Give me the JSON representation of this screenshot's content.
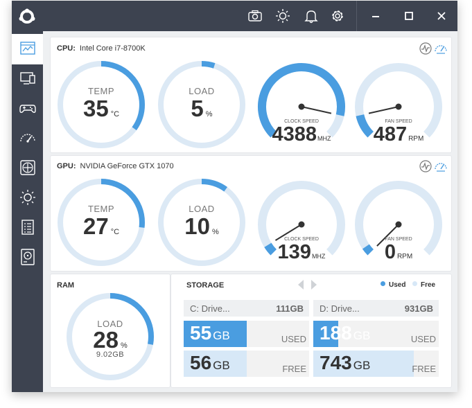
{
  "window": {
    "toolbar": {
      "icons": [
        "app-logo-icon",
        "camera-icon",
        "brightness-icon",
        "bell-icon",
        "gear-icon",
        "minimize-icon",
        "maximize-icon",
        "close-icon"
      ]
    }
  },
  "colors": {
    "accent": "#4a9de0",
    "track": "#dce9f5",
    "chrome": "#3d4350",
    "light": "#d7e8f7"
  },
  "sidebar": {
    "items": [
      {
        "icon": "dashboard-icon",
        "active": true
      },
      {
        "icon": "monitor-icon"
      },
      {
        "icon": "gamepad-icon"
      },
      {
        "icon": "speedometer-icon"
      },
      {
        "icon": "fan-icon"
      },
      {
        "icon": "sun-icon"
      },
      {
        "icon": "checklist-icon"
      },
      {
        "icon": "harddrive-icon"
      }
    ]
  },
  "cpu": {
    "label": "CPU:",
    "name": "Intel Core i7-8700K",
    "temp": {
      "caption": "TEMP",
      "value": "35",
      "unit": "°C",
      "fraction": 0.35
    },
    "load": {
      "caption": "LOAD",
      "value": "5",
      "unit": "%",
      "fraction": 0.05
    },
    "clock": {
      "caption": "CLOCK SPEED",
      "value": "4388",
      "unit": "MHZ",
      "fraction": 0.88
    },
    "fan": {
      "caption": "FAN SPEED",
      "value": "487",
      "unit": "RPM",
      "fraction": 0.12
    }
  },
  "gpu": {
    "label": "GPU:",
    "name": "NVIDIA GeForce GTX 1070",
    "temp": {
      "caption": "TEMP",
      "value": "27",
      "unit": "°C",
      "fraction": 0.27
    },
    "load": {
      "caption": "LOAD",
      "value": "10",
      "unit": "%",
      "fraction": 0.1
    },
    "clock": {
      "caption": "CLOCK SPEED",
      "value": "139",
      "unit": "MHZ",
      "fraction": 0.05
    },
    "fan": {
      "caption": "FAN SPEED",
      "value": "0",
      "unit": "RPM",
      "fraction": 0.0
    }
  },
  "ram": {
    "label": "RAM",
    "caption": "LOAD",
    "value": "28",
    "unit": "%",
    "amount": "9.02GB",
    "fraction": 0.28
  },
  "storage": {
    "label": "STORAGE",
    "legend_used": "Used",
    "legend_free": "Free",
    "drives": [
      {
        "name": "C: Drive...",
        "size": "111GB",
        "used": "55",
        "used_unit": "GB",
        "used_tag": "USED",
        "used_fraction": 0.5,
        "free": "56",
        "free_unit": "GB",
        "free_tag": "FREE",
        "free_fraction": 0.5
      },
      {
        "name": "D: Drive...",
        "size": "931GB",
        "used": "188",
        "used_unit": "GB",
        "used_tag": "USED",
        "used_fraction": 0.2,
        "free": "743",
        "free_unit": "GB",
        "free_tag": "FREE",
        "free_fraction": 0.8
      }
    ]
  }
}
